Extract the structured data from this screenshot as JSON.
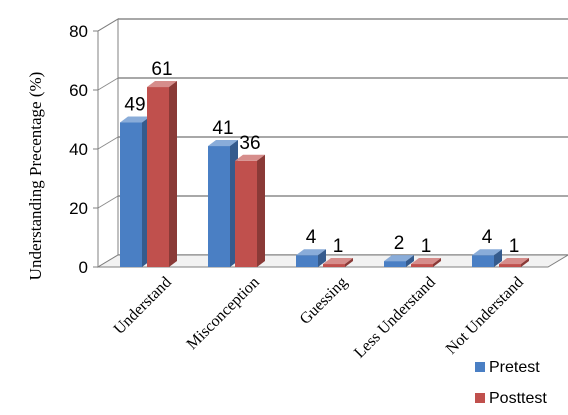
{
  "chart_data": {
    "type": "bar",
    "title": "",
    "xlabel": "",
    "ylabel": "Understanding Precentage (%)",
    "ylim": [
      0,
      80
    ],
    "yticks": [
      0,
      20,
      40,
      60,
      80
    ],
    "grid": true,
    "legend_position": "bottom-right",
    "categories": [
      "Understand",
      "Misconception",
      "Guessing",
      "Less Understand",
      "Not Understand"
    ],
    "series": [
      {
        "name": "Pretest",
        "values": [
          49,
          41,
          4,
          2,
          4
        ],
        "color": "#4a7fc4"
      },
      {
        "name": "Posttest",
        "values": [
          61,
          36,
          1,
          1,
          1
        ],
        "color": "#c0504d"
      }
    ]
  }
}
